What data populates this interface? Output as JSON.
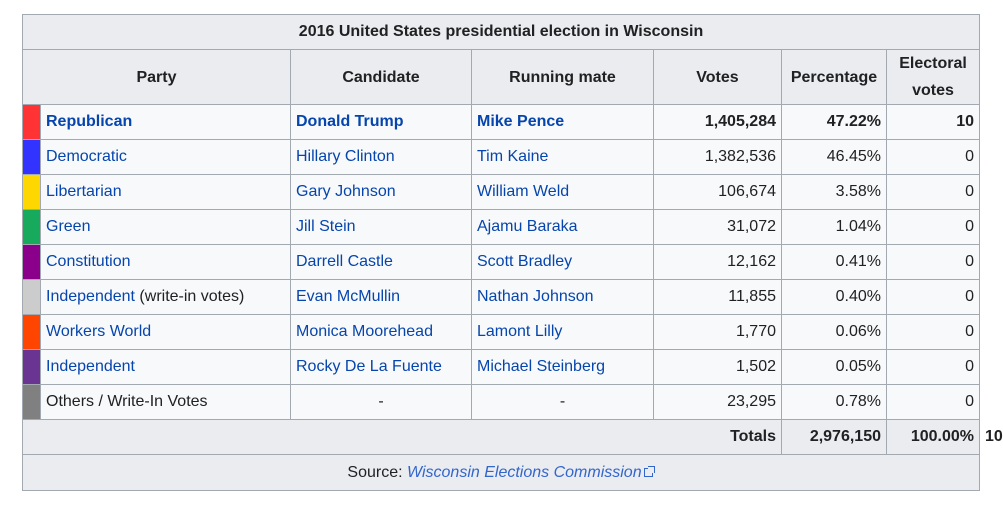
{
  "caption": "2016 United States presidential election in Wisconsin",
  "headers": {
    "party": "Party",
    "candidate": "Candidate",
    "running_mate": "Running mate",
    "votes": "Votes",
    "percentage": "Percentage",
    "electoral_line1": "Electoral",
    "electoral_line2": "votes"
  },
  "rows": [
    {
      "color": "#ff3333",
      "party": "Republican",
      "party_suffix": "",
      "candidate": "Donald Trump",
      "running_mate": "Mike Pence",
      "votes": "1,405,284",
      "percentage": "47.22%",
      "electoral": "10"
    },
    {
      "color": "#3333ff",
      "party": "Democratic",
      "party_suffix": "",
      "candidate": "Hillary Clinton",
      "running_mate": "Tim Kaine",
      "votes": "1,382,536",
      "percentage": "46.45%",
      "electoral": "0"
    },
    {
      "color": "#ffd700",
      "party": "Libertarian",
      "party_suffix": "",
      "candidate": "Gary Johnson",
      "running_mate": "William Weld",
      "votes": "106,674",
      "percentage": "3.58%",
      "electoral": "0"
    },
    {
      "color": "#17aa5c",
      "party": "Green",
      "party_suffix": "",
      "candidate": "Jill Stein",
      "running_mate": "Ajamu Baraka",
      "votes": "31,072",
      "percentage": "1.04%",
      "electoral": "0"
    },
    {
      "color": "#8b008b",
      "party": "Constitution",
      "party_suffix": "",
      "candidate": "Darrell Castle",
      "running_mate": "Scott Bradley",
      "votes": "12,162",
      "percentage": "0.41%",
      "electoral": "0"
    },
    {
      "color": "#cccccc",
      "party": "Independent",
      "party_suffix": " (write-in votes)",
      "candidate": "Evan McMullin",
      "running_mate": "Nathan Johnson",
      "votes": "11,855",
      "percentage": "0.40%",
      "electoral": "0"
    },
    {
      "color": "#ff4500",
      "party": "Workers World",
      "party_suffix": "",
      "candidate": "Monica Moorehead",
      "running_mate": "Lamont Lilly",
      "votes": "1,770",
      "percentage": "0.06%",
      "electoral": "0"
    },
    {
      "color": "#6a3592",
      "party": "Independent",
      "party_suffix": "",
      "candidate": "Rocky De La Fuente",
      "running_mate": "Michael Steinberg",
      "votes": "1,502",
      "percentage": "0.05%",
      "electoral": "0"
    },
    {
      "color": "#808080",
      "party": "Others / Write-In Votes",
      "party_suffix": "",
      "candidate": "-",
      "running_mate": "-",
      "votes": "23,295",
      "percentage": "0.78%",
      "electoral": "0"
    }
  ],
  "totals": {
    "label": "Totals",
    "votes": "2,976,150",
    "percentage": "100.00%",
    "electoral": "10"
  },
  "source": {
    "prefix": "Source: ",
    "link_text": "Wisconsin Elections Commission",
    "icon": "external-link-icon"
  }
}
